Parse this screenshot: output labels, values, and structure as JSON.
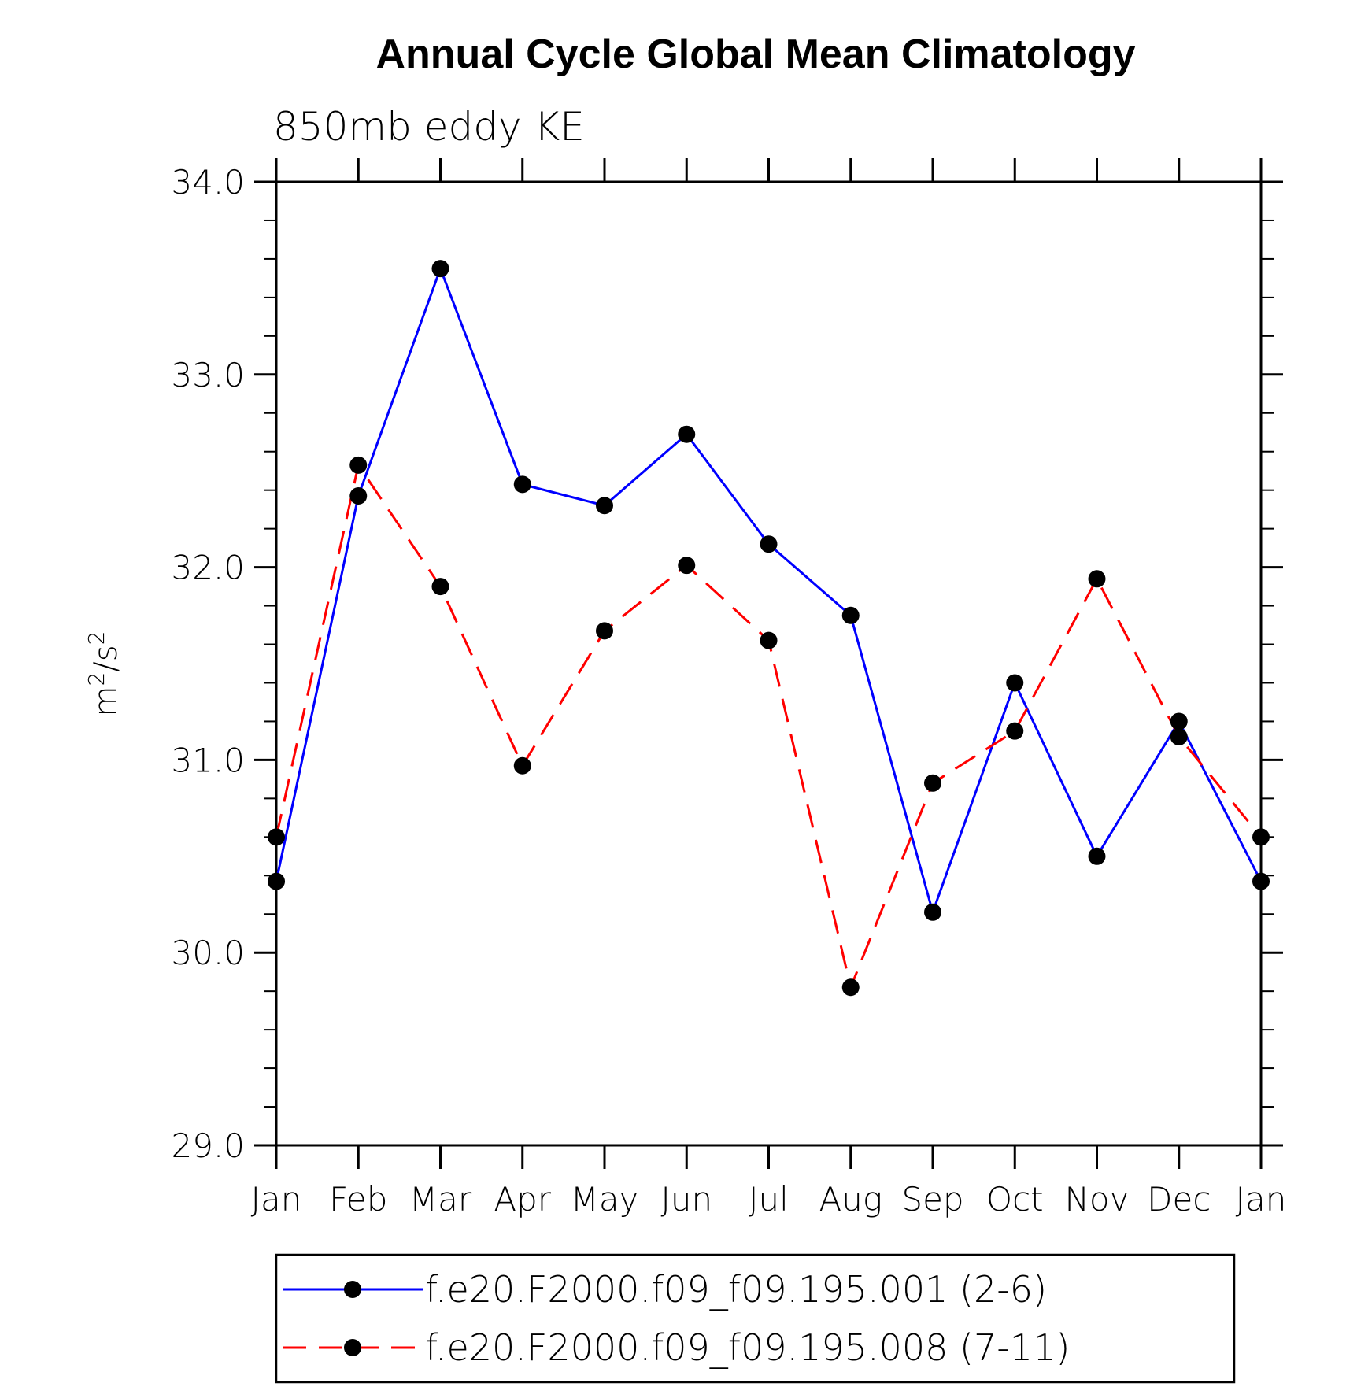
{
  "chart_data": {
    "type": "line",
    "title": "Annual Cycle Global Mean Climatology",
    "subtitle": "850mb eddy KE",
    "ylabel": "m²/s²",
    "xlabel": "",
    "categories": [
      "Jan",
      "Feb",
      "Mar",
      "Apr",
      "May",
      "Jun",
      "Jul",
      "Aug",
      "Sep",
      "Oct",
      "Nov",
      "Dec",
      "Jan"
    ],
    "ylim": [
      29.0,
      34.0
    ],
    "yticks": [
      29.0,
      30.0,
      31.0,
      32.0,
      33.0,
      34.0
    ],
    "ytick_labels": [
      "29.0",
      "30.0",
      "31.0",
      "32.0",
      "33.0",
      "34.0"
    ],
    "grid": false,
    "legend_position": "bottom",
    "series": [
      {
        "name": "f.e20.F2000.f09_f09.195.001 (2-6)",
        "color": "#0000ff",
        "style": "solid",
        "marker": "filled-circle",
        "values": [
          30.37,
          32.37,
          33.55,
          32.43,
          32.32,
          32.69,
          32.12,
          31.75,
          30.21,
          31.4,
          30.5,
          31.2,
          30.37
        ]
      },
      {
        "name": "f.e20.F2000.f09_f09.195.008 (7-11)",
        "color": "#ff0000",
        "style": "dashed",
        "marker": "filled-circle",
        "values": [
          30.6,
          32.53,
          31.9,
          30.97,
          31.67,
          32.01,
          31.62,
          29.82,
          30.88,
          31.15,
          31.94,
          31.12,
          30.6
        ]
      }
    ]
  }
}
